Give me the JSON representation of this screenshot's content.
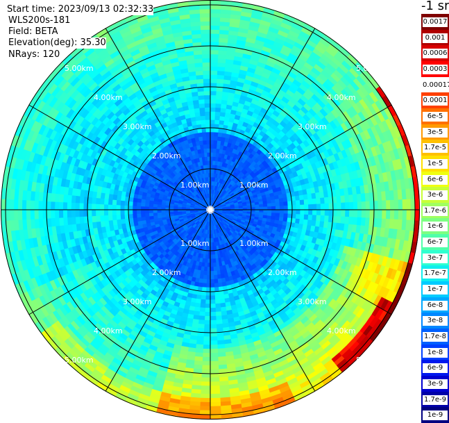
{
  "info": {
    "start_time": "Start time: 2023/09/13 02:32:33",
    "instrument": "WLS200s-181",
    "field": "Field: BETA",
    "elevation": "Elevation(deg): 35.30",
    "nrays": "NRays: 120"
  },
  "colorbar": {
    "unit_label": "-1 sr",
    "labels": [
      "0.0017",
      "0.001",
      "0.0006",
      "0.0003",
      "0.00017",
      "0.0001",
      "6e-5",
      "3e-5",
      "1.7e-5",
      "1e-5",
      "6e-6",
      "3e-6",
      "1.7e-6",
      "1e-6",
      "6e-7",
      "3e-7",
      "1.7e-7",
      "1e-7",
      "6e-8",
      "3e-8",
      "1.7e-8",
      "1e-8",
      "6e-9",
      "3e-9",
      "1.7e-9",
      "1e-9"
    ],
    "colors": [
      "#7f0000",
      "#b00000",
      "#d80000",
      "#ff0000",
      "#ffffff",
      "#ff4000",
      "#ff7000",
      "#ff9a00",
      "#ffc000",
      "#ffe000",
      "#f0ff10",
      "#c8ff38",
      "#a0ff60",
      "#7cff82",
      "#50ffaa",
      "#30ffd0",
      "#10eeee",
      "#00ccff",
      "#00a8ff",
      "#0088ff",
      "#0060ff",
      "#0040ff",
      "#0018ee",
      "#0000d0",
      "#0000a8",
      "#000080"
    ]
  },
  "chart_data": {
    "type": "heatmap",
    "projection": "polar (PPI scan)",
    "field": "BETA",
    "elevation_deg": 35.3,
    "n_rays": 120,
    "range_rings_km": [
      1.0,
      2.0,
      3.0,
      4.0,
      5.0
    ],
    "ring_labels": [
      "1.00km",
      "2.00km",
      "3.00km",
      "4.00km",
      "5.00km"
    ],
    "max_range_km": 5.9,
    "spokes_every_deg": 30,
    "color_scale": "log",
    "value_range_sr-1": [
      1e-09,
      0.0017
    ],
    "background_level": "≈1e-7 to 6e-8",
    "enhanced_regions": [
      {
        "bearing": "east rim (~60°–120°)",
        "range_km": "5.0–5.7",
        "level": "≈1.7e-5 to 6e-5"
      },
      {
        "bearing": "south (~150°–200°)",
        "range_km": "5.3–5.7",
        "level": "≈1e-5 to 3e-5"
      },
      {
        "bearing": "north-northeast (~20°–30°)",
        "range_km": "≈5.5",
        "level": "≈6e-5"
      },
      {
        "bearing": "southeast (~110°–160°)",
        "range_km": "3.5–5.0",
        "level": "≈6e-7 to 3e-6"
      }
    ]
  }
}
